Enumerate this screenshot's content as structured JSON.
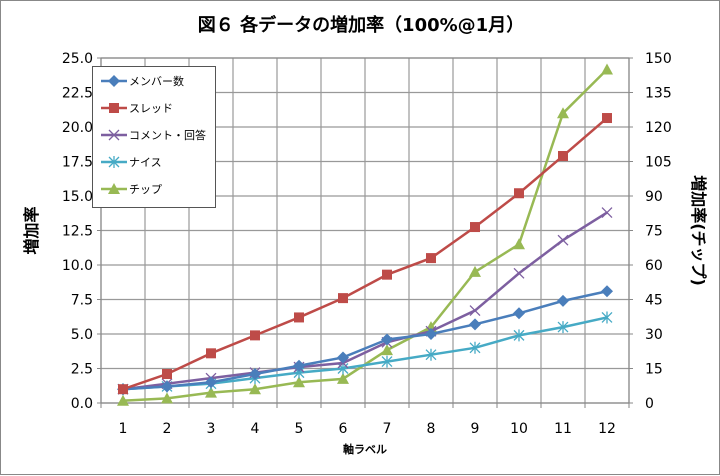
{
  "chart_data": {
    "type": "line",
    "title": "図６ 各データの増加率（100%@1月）",
    "xlabel": "軸ラベル",
    "ylabel": "増加率",
    "y2label": "増加率(チップ)",
    "categories": [
      "1",
      "2",
      "3",
      "4",
      "5",
      "6",
      "7",
      "8",
      "9",
      "10",
      "11",
      "12"
    ],
    "ylim": [
      0,
      25
    ],
    "yticks": [
      "0.0",
      "2.5",
      "5.0",
      "7.5",
      "10.0",
      "12.5",
      "15.0",
      "17.5",
      "20.0",
      "22.5",
      "25.0"
    ],
    "y2lim": [
      0,
      150
    ],
    "y2ticks": [
      "0",
      "15",
      "30",
      "45",
      "60",
      "75",
      "90",
      "105",
      "120",
      "135",
      "150"
    ],
    "grid": true,
    "legend_placement": "top-left",
    "series": [
      {
        "name": "メンバー数",
        "axis": "left",
        "color": "#4a7ebb",
        "marker": "diamond",
        "values": [
          1.0,
          1.2,
          1.5,
          2.1,
          2.7,
          3.3,
          4.6,
          5.0,
          5.7,
          6.5,
          7.4,
          8.1
        ]
      },
      {
        "name": "スレッド",
        "axis": "left",
        "color": "#be4b48",
        "marker": "square",
        "values": [
          1.0,
          2.1,
          3.6,
          4.9,
          6.2,
          7.6,
          9.3,
          10.5,
          12.75,
          15.2,
          17.9,
          20.65
        ]
      },
      {
        "name": "コメント・回答",
        "axis": "left",
        "color": "#7d5fa0",
        "marker": "x",
        "values": [
          1.0,
          1.4,
          1.8,
          2.2,
          2.6,
          2.9,
          4.4,
          5.2,
          6.7,
          9.4,
          11.8,
          13.8
        ]
      },
      {
        "name": "ナイス",
        "axis": "left",
        "color": "#46aac5",
        "marker": "star",
        "values": [
          1.0,
          1.2,
          1.4,
          1.8,
          2.2,
          2.5,
          3.0,
          3.5,
          4.0,
          4.9,
          5.5,
          6.2
        ]
      },
      {
        "name": "チップ",
        "axis": "right",
        "color": "#98b954",
        "marker": "triangle",
        "values": [
          1,
          2,
          4.5,
          6,
          9,
          10.5,
          23,
          33,
          57,
          69,
          126,
          145
        ]
      }
    ]
  }
}
